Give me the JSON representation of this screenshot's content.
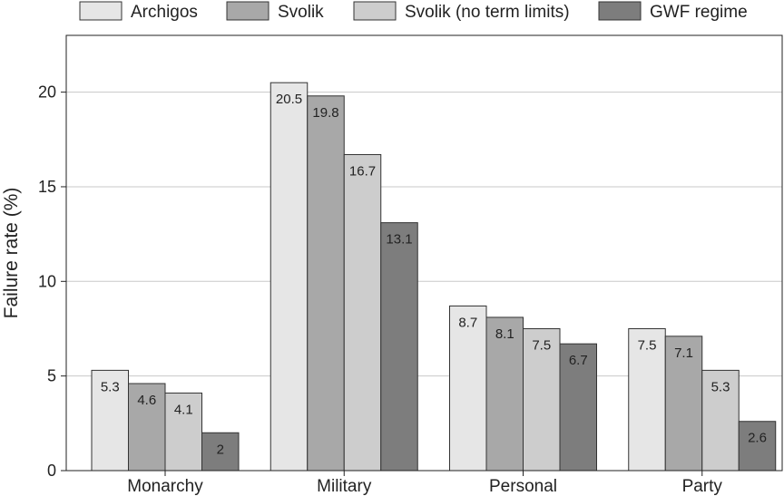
{
  "chart_data": {
    "type": "bar",
    "categories": [
      "Monarchy",
      "Military",
      "Personal",
      "Party"
    ],
    "series": [
      {
        "name": "Archigos",
        "values": [
          5.3,
          20.5,
          8.7,
          7.5
        ],
        "color": "#e6e6e6"
      },
      {
        "name": "Svolik",
        "values": [
          4.6,
          19.8,
          8.1,
          7.1
        ],
        "color": "#a8a8a8"
      },
      {
        "name": "Svolik (no term limits)",
        "values": [
          4.1,
          16.7,
          7.5,
          5.3
        ],
        "color": "#cdcdcd"
      },
      {
        "name": "GWF regime",
        "values": [
          2,
          13.1,
          6.7,
          2.6
        ],
        "color": "#7d7d7d"
      }
    ],
    "data_labels": [
      [
        "5.3",
        "20.5",
        "8.7",
        "7.5"
      ],
      [
        "4.6",
        "19.8",
        "8.1",
        "7.1"
      ],
      [
        "4.1",
        "16.7",
        "7.5",
        "5.3"
      ],
      [
        "2",
        "13.1",
        "6.7",
        "2.6"
      ]
    ],
    "ylabel": "Failure rate (%)",
    "xlabel": "",
    "ylim": [
      0,
      23
    ],
    "yticks": [
      0,
      5,
      10,
      15,
      20
    ],
    "ytick_labels": [
      "0",
      "5",
      "10",
      "15",
      "20"
    ],
    "grid": true,
    "legend_position": "top"
  }
}
